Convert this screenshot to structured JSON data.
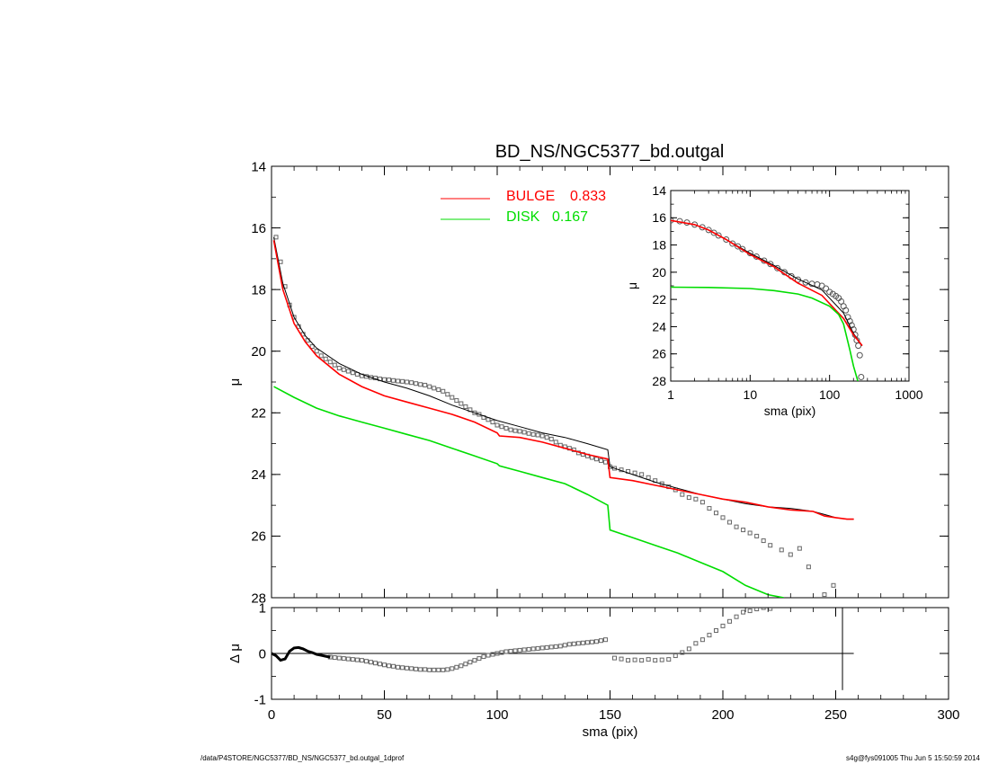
{
  "chart_data": [
    {
      "id": "main",
      "type": "line",
      "title": "BD_NS/NGC5377_bd.outgal",
      "xlabel": "",
      "ylabel": "μ",
      "xlim": [
        0,
        300
      ],
      "ylim": [
        28,
        14
      ],
      "yreversed": true,
      "xticks": [
        "0",
        "50",
        "100",
        "150",
        "200",
        "250",
        "300"
      ],
      "yticks": [
        "14",
        "16",
        "18",
        "20",
        "22",
        "24",
        "26",
        "28"
      ],
      "legend": [
        {
          "label": "BULGE",
          "value": "0.833",
          "color": "#ff0000"
        },
        {
          "label": "DISK",
          "value": "0.167",
          "color": "#00dd00"
        }
      ],
      "series": [
        {
          "role": "observed",
          "marker": "square",
          "color": "#666666",
          "x": [
            2,
            4,
            6,
            8,
            10,
            12,
            14,
            16,
            18,
            20,
            22,
            24,
            26,
            28,
            30,
            32,
            34,
            36,
            38,
            40,
            42,
            44,
            46,
            48,
            50,
            52,
            54,
            56,
            58,
            60,
            62,
            64,
            66,
            68,
            70,
            72,
            74,
            76,
            78,
            80,
            82,
            84,
            86,
            88,
            90,
            92,
            94,
            96,
            98,
            100,
            102,
            104,
            106,
            108,
            110,
            112,
            114,
            116,
            118,
            120,
            122,
            124,
            126,
            128,
            130,
            132,
            134,
            136,
            138,
            140,
            142,
            144,
            146,
            148,
            150,
            152,
            155,
            158,
            161,
            164,
            167,
            170,
            173,
            176,
            179,
            182,
            185,
            188,
            191,
            194,
            197,
            200,
            203,
            206,
            209,
            212,
            215,
            218,
            221,
            226,
            230,
            234,
            238,
            245,
            249
          ],
          "y": [
            16.3,
            17.1,
            17.9,
            18.5,
            18.9,
            19.2,
            19.45,
            19.65,
            19.85,
            20.0,
            20.15,
            20.25,
            20.35,
            20.45,
            20.55,
            20.6,
            20.65,
            20.7,
            20.75,
            20.8,
            20.82,
            20.85,
            20.87,
            20.9,
            20.92,
            20.93,
            20.95,
            20.97,
            20.98,
            21.0,
            21.02,
            21.05,
            21.08,
            21.1,
            21.15,
            21.2,
            21.25,
            21.3,
            21.4,
            21.5,
            21.6,
            21.7,
            21.8,
            21.9,
            22.0,
            22.05,
            22.15,
            22.22,
            22.3,
            22.4,
            22.45,
            22.5,
            22.55,
            22.58,
            22.6,
            22.63,
            22.67,
            22.7,
            22.72,
            22.75,
            22.8,
            22.85,
            22.95,
            23.05,
            23.1,
            23.15,
            23.2,
            23.3,
            23.35,
            23.4,
            23.45,
            23.5,
            23.55,
            23.6,
            23.75,
            23.8,
            23.85,
            23.9,
            23.95,
            24.0,
            24.1,
            24.2,
            24.3,
            24.4,
            24.5,
            24.65,
            24.75,
            24.8,
            24.9,
            25.1,
            25.25,
            25.4,
            25.55,
            25.7,
            25.8,
            25.9,
            26.0,
            26.15,
            26.3,
            26.45,
            26.6,
            26.4,
            27.0,
            27.9,
            27.6
          ]
        },
        {
          "role": "total-model",
          "color": "#000000",
          "x": [
            1,
            5,
            10,
            15,
            20,
            30,
            40,
            50,
            60,
            70,
            80,
            90,
            100,
            110,
            120,
            130,
            140,
            149,
            150,
            160,
            170,
            180,
            190,
            200,
            210,
            220,
            230,
            240,
            245,
            250,
            255,
            258
          ],
          "y": [
            16.3,
            17.8,
            18.9,
            19.5,
            19.9,
            20.4,
            20.75,
            21.0,
            21.2,
            21.45,
            21.75,
            22.0,
            22.25,
            22.45,
            22.65,
            22.8,
            23.0,
            23.2,
            23.75,
            24.0,
            24.25,
            24.45,
            24.65,
            24.8,
            24.95,
            25.05,
            25.1,
            25.2,
            25.3,
            25.4,
            25.45,
            25.45
          ]
        },
        {
          "role": "bulge",
          "color": "#ff0000",
          "x": [
            1,
            5,
            10,
            15,
            20,
            30,
            40,
            50,
            60,
            70,
            80,
            90,
            100,
            101,
            110,
            120,
            130,
            140,
            149,
            150,
            160,
            170,
            180,
            190,
            200,
            210,
            220,
            230,
            240,
            245,
            250,
            255,
            258
          ],
          "y": [
            16.4,
            18.0,
            19.1,
            19.7,
            20.15,
            20.75,
            21.15,
            21.45,
            21.65,
            21.85,
            22.05,
            22.3,
            22.65,
            22.75,
            22.8,
            22.95,
            23.15,
            23.35,
            23.5,
            24.1,
            24.2,
            24.35,
            24.5,
            24.65,
            24.8,
            24.9,
            25.05,
            25.15,
            25.2,
            25.35,
            25.4,
            25.45,
            25.45
          ]
        },
        {
          "role": "disk",
          "color": "#00dd00",
          "x": [
            1,
            10,
            20,
            30,
            40,
            50,
            60,
            70,
            80,
            90,
            100,
            101,
            110,
            120,
            130,
            140,
            149,
            150,
            160,
            170,
            180,
            190,
            200,
            210,
            220,
            227
          ],
          "y": [
            21.15,
            21.5,
            21.85,
            22.1,
            22.3,
            22.5,
            22.7,
            22.9,
            23.15,
            23.4,
            23.65,
            23.72,
            23.9,
            24.1,
            24.3,
            24.65,
            25.0,
            25.8,
            26.05,
            26.3,
            26.55,
            26.85,
            27.15,
            27.6,
            27.9,
            28.0
          ]
        }
      ]
    },
    {
      "id": "residual",
      "type": "scatter",
      "xlabel": "sma (pix)",
      "ylabel": "Δ μ",
      "xlim": [
        0,
        300
      ],
      "ylim": [
        -1,
        1
      ],
      "xticks": [
        "0",
        "50",
        "100",
        "150",
        "200",
        "250",
        "300"
      ],
      "yticks": [
        "1",
        "0",
        "-1"
      ],
      "zero_line_x": [
        0,
        258
      ],
      "vline_x": 253,
      "vline_y": [
        -0.8,
        1.05
      ],
      "series": [
        {
          "role": "residual",
          "marker": "square",
          "color": "#666666",
          "x": [
            26,
            28,
            30,
            32,
            34,
            36,
            38,
            40,
            42,
            44,
            46,
            48,
            50,
            52,
            54,
            56,
            58,
            60,
            62,
            64,
            66,
            68,
            70,
            72,
            74,
            76,
            78,
            80,
            82,
            84,
            86,
            88,
            90,
            92,
            94,
            96,
            98,
            100,
            102,
            104,
            106,
            108,
            110,
            112,
            114,
            116,
            118,
            120,
            122,
            124,
            126,
            128,
            130,
            132,
            134,
            136,
            138,
            140,
            142,
            144,
            146,
            148,
            152,
            155,
            158,
            161,
            164,
            167,
            170,
            173,
            176,
            179,
            182,
            185,
            188,
            191,
            194,
            197,
            200,
            203,
            206,
            209,
            212,
            215,
            218,
            221
          ],
          "y": [
            -0.08,
            -0.09,
            -0.1,
            -0.11,
            -0.12,
            -0.13,
            -0.14,
            -0.15,
            -0.17,
            -0.19,
            -0.21,
            -0.23,
            -0.25,
            -0.27,
            -0.28,
            -0.3,
            -0.31,
            -0.32,
            -0.33,
            -0.34,
            -0.35,
            -0.35,
            -0.36,
            -0.36,
            -0.36,
            -0.36,
            -0.35,
            -0.33,
            -0.3,
            -0.27,
            -0.23,
            -0.19,
            -0.15,
            -0.11,
            -0.07,
            -0.04,
            -0.02,
            0.0,
            0.02,
            0.04,
            0.05,
            0.06,
            0.07,
            0.08,
            0.09,
            0.1,
            0.11,
            0.12,
            0.13,
            0.14,
            0.15,
            0.16,
            0.18,
            0.2,
            0.21,
            0.22,
            0.23,
            0.24,
            0.25,
            0.26,
            0.28,
            0.3,
            -0.1,
            -0.12,
            -0.15,
            -0.14,
            -0.15,
            -0.13,
            -0.15,
            -0.14,
            -0.13,
            -0.05,
            0.02,
            0.1,
            0.22,
            0.3,
            0.4,
            0.5,
            0.6,
            0.7,
            0.8,
            0.9,
            0.93,
            0.97,
            1.0,
            0.98
          ]
        },
        {
          "role": "residual-dense",
          "color": "#000000",
          "x": [
            0,
            2,
            4,
            6,
            8,
            10,
            12,
            14,
            16,
            18,
            20,
            22,
            24,
            26
          ],
          "y": [
            0.0,
            -0.05,
            -0.15,
            -0.12,
            0.05,
            0.12,
            0.13,
            0.1,
            0.05,
            0.02,
            -0.02,
            -0.04,
            -0.06,
            -0.08
          ]
        }
      ]
    },
    {
      "id": "inset",
      "type": "line",
      "xlabel": "sma (pix)",
      "ylabel": "μ",
      "xscale": "log",
      "xlim": [
        1,
        1000
      ],
      "ylim": [
        28,
        14
      ],
      "yreversed": true,
      "xticks": [
        "1",
        "10",
        "100",
        "1000"
      ],
      "yticks": [
        "14",
        "16",
        "18",
        "20",
        "22",
        "24",
        "26",
        "28"
      ],
      "series": [
        {
          "role": "observed",
          "marker": "circle",
          "color": "#555555",
          "x": [
            1,
            1.3,
            1.6,
            2,
            2.5,
            3,
            3.5,
            4,
            5,
            6,
            7,
            8,
            10,
            12,
            15,
            18,
            22,
            27,
            33,
            40,
            50,
            60,
            70,
            80,
            90,
            100,
            110,
            120,
            130,
            140,
            150,
            160,
            170,
            180,
            190,
            200,
            210,
            220,
            230,
            240,
            250
          ],
          "y": [
            16.2,
            16.25,
            16.35,
            16.5,
            16.7,
            16.9,
            17.1,
            17.3,
            17.6,
            17.9,
            18.1,
            18.3,
            18.6,
            18.85,
            19.15,
            19.4,
            19.7,
            20.0,
            20.3,
            20.55,
            20.75,
            20.85,
            20.9,
            21.0,
            21.2,
            21.45,
            21.6,
            21.75,
            21.9,
            22.15,
            22.5,
            22.8,
            23.3,
            23.6,
            23.9,
            24.2,
            24.6,
            25.0,
            25.4,
            26.1,
            27.7
          ]
        },
        {
          "role": "total-model",
          "color": "#000000",
          "x": [
            1,
            2,
            3,
            5,
            10,
            20,
            40,
            80,
            150,
            200,
            258
          ],
          "y": [
            16.2,
            16.5,
            16.9,
            17.6,
            18.6,
            19.5,
            20.5,
            21.3,
            23.0,
            24.5,
            25.4
          ]
        },
        {
          "role": "bulge",
          "color": "#ff0000",
          "x": [
            1,
            2,
            3,
            5,
            10,
            20,
            40,
            80,
            150,
            200,
            258
          ],
          "y": [
            16.2,
            16.5,
            16.9,
            17.6,
            18.7,
            19.6,
            20.8,
            21.7,
            23.4,
            24.6,
            25.4
          ]
        },
        {
          "role": "disk",
          "color": "#00dd00",
          "x": [
            1,
            3,
            10,
            20,
            40,
            60,
            100,
            130,
            150,
            180,
            200,
            227
          ],
          "y": [
            21.1,
            21.12,
            21.2,
            21.35,
            21.6,
            21.9,
            22.5,
            23.1,
            23.8,
            25.7,
            26.9,
            28.0
          ]
        }
      ]
    }
  ],
  "footer": {
    "left": "/data/P4STORE/NGC5377/BD_NS/NGC5377_bd.outgal_1dprof",
    "right": "s4g@fys091005  Thu Jun  5 15:50:59 2014"
  }
}
